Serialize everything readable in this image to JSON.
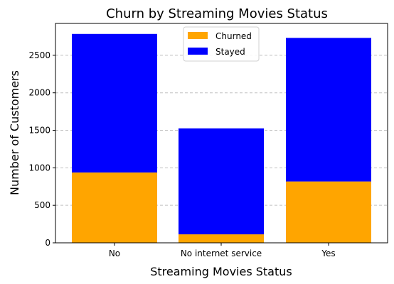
{
  "chart_data": {
    "type": "bar",
    "stacked": true,
    "title": "Churn by Streaming Movies Status",
    "xlabel": "Streaming Movies Status",
    "ylabel": "Number of Customers",
    "categories": [
      "No",
      "No internet service",
      "Yes"
    ],
    "series": [
      {
        "name": "Churned",
        "values": [
          938,
          113,
          818
        ],
        "color": "#FFA500"
      },
      {
        "name": "Stayed",
        "values": [
          1847,
          1413,
          1914
        ],
        "color": "#0000FF"
      }
    ],
    "ylim": [
      0,
      2925
    ],
    "yticks": [
      0,
      500,
      1000,
      1500,
      2000,
      2500
    ],
    "grid": "y-dashed",
    "legend": "top-center"
  }
}
